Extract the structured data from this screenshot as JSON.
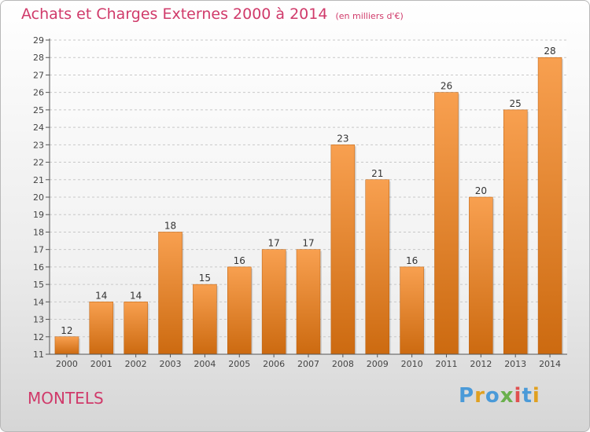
{
  "title": "Achats et Charges Externes 2000 à 2014",
  "subtitle": "(en milliers d'€)",
  "commune": "MONTELS",
  "logo": "Proxiti",
  "colors": {
    "bar_top": "#f8a050",
    "bar_bottom": "#cc6a10",
    "title": "#d03a6a"
  },
  "chart_data": {
    "type": "bar",
    "categories": [
      "2000",
      "2001",
      "2002",
      "2003",
      "2004",
      "2005",
      "2006",
      "2007",
      "2008",
      "2009",
      "2010",
      "2011",
      "2012",
      "2013",
      "2014"
    ],
    "values": [
      12,
      14,
      14,
      18,
      15,
      16,
      17,
      17,
      23,
      21,
      16,
      26,
      20,
      25,
      28
    ],
    "ylim": [
      11,
      29
    ],
    "yticks": [
      11,
      12,
      13,
      14,
      15,
      16,
      17,
      18,
      19,
      20,
      21,
      22,
      23,
      24,
      25,
      26,
      27,
      28,
      29
    ],
    "grid": true,
    "title": "Achats et Charges Externes 2000 à 2014",
    "xlabel": "",
    "ylabel": ""
  }
}
